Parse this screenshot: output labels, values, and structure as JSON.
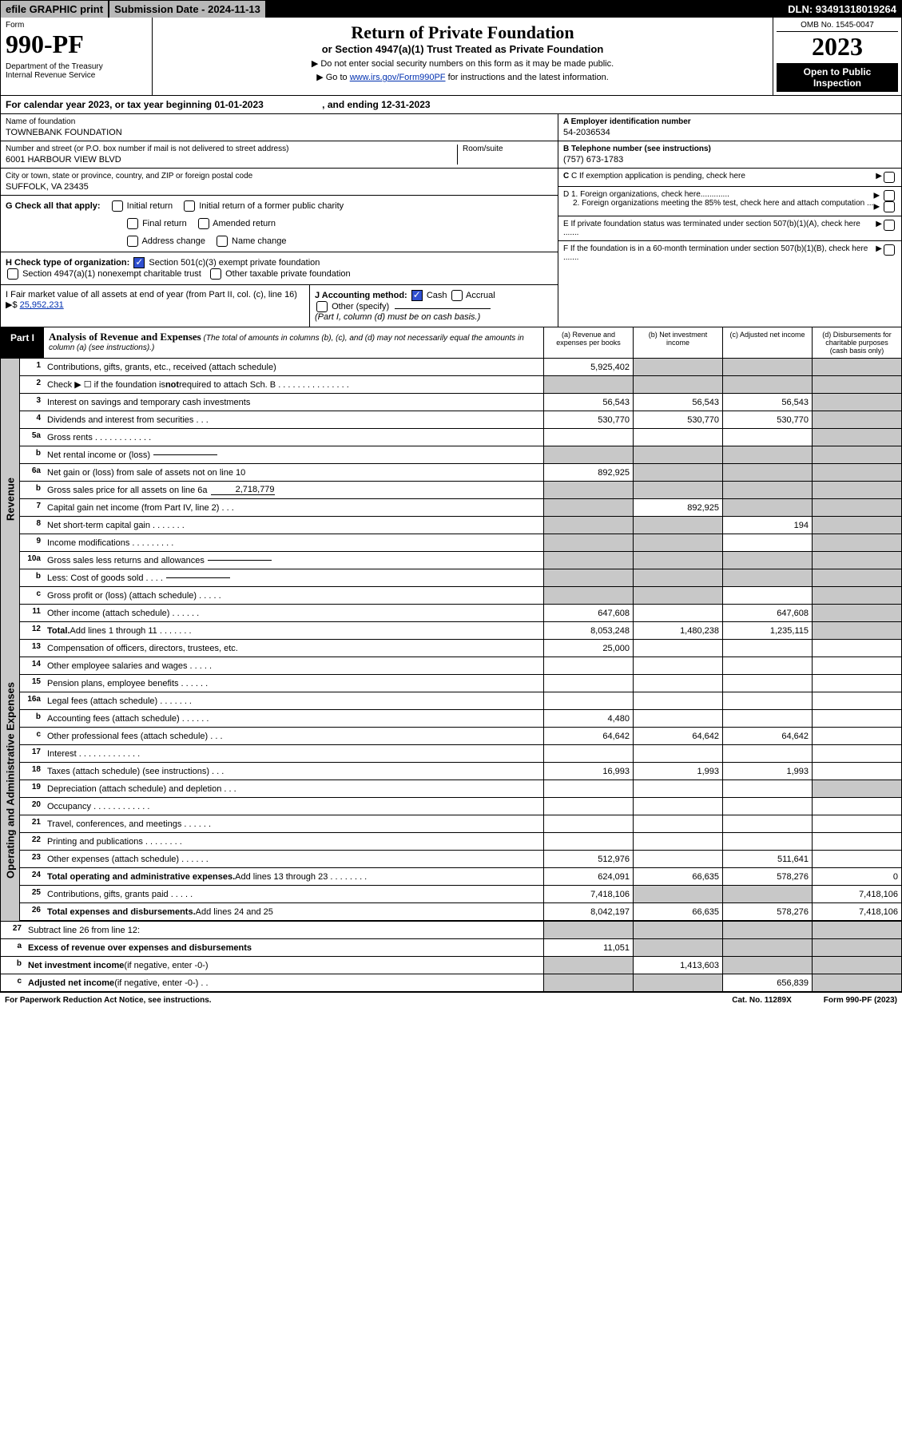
{
  "topbar": {
    "efile": "efile GRAPHIC print",
    "subdate": "Submission Date - 2024-11-13",
    "dln": "DLN: 93491318019264"
  },
  "header": {
    "form_label": "Form",
    "form_number": "990-PF",
    "dept": "Department of the Treasury\nInternal Revenue Service",
    "title": "Return of Private Foundation",
    "subtitle": "or Section 4947(a)(1) Trust Treated as Private Foundation",
    "instr1": "▶ Do not enter social security numbers on this form as it may be made public.",
    "instr2_pre": "▶ Go to ",
    "instr2_link": "www.irs.gov/Form990PF",
    "instr2_post": " for instructions and the latest information.",
    "omb": "OMB No. 1545-0047",
    "year": "2023",
    "open": "Open to Public Inspection"
  },
  "cal": "For calendar year 2023, or tax year beginning 01-01-2023                      , and ending 12-31-2023",
  "info": {
    "name_label": "Name of foundation",
    "name": "TOWNEBANK FOUNDATION",
    "addr_label": "Number and street (or P.O. box number if mail is not delivered to street address)",
    "addr": "6001 HARBOUR VIEW BLVD",
    "room_label": "Room/suite",
    "city_label": "City or town, state or province, country, and ZIP or foreign postal code",
    "city": "SUFFOLK, VA  23435",
    "a_label": "A Employer identification number",
    "a_val": "54-2036534",
    "b_label": "B Telephone number (see instructions)",
    "b_val": "(757) 673-1783",
    "c_label": "C If exemption application is pending, check here",
    "d1": "D 1. Foreign organizations, check here.............",
    "d2": "2. Foreign organizations meeting the 85% test, check here and attach computation ...",
    "e": "E  If private foundation status was terminated under section 507(b)(1)(A), check here .......",
    "f": "F  If the foundation is in a 60-month termination under section 507(b)(1)(B), check here ......."
  },
  "g": {
    "label": "G Check all that apply:",
    "opts": [
      "Initial return",
      "Final return",
      "Address change",
      "Initial return of a former public charity",
      "Amended return",
      "Name change"
    ]
  },
  "h": {
    "label": "H Check type of organization:",
    "opt1": "Section 501(c)(3) exempt private foundation",
    "opt2": "Section 4947(a)(1) nonexempt charitable trust",
    "opt3": "Other taxable private foundation"
  },
  "i": {
    "label": "I Fair market value of all assets at end of year (from Part II, col. (c), line 16) ▶$ ",
    "val": "25,952,231"
  },
  "j": {
    "label": "J Accounting method:",
    "cash": "Cash",
    "accrual": "Accrual",
    "other": "Other (specify)",
    "note": "(Part I, column (d) must be on cash basis.)"
  },
  "part1": {
    "tag": "Part I",
    "title": "Analysis of Revenue and Expenses",
    "note": "(The total of amounts in columns (b), (c), and (d) may not necessarily equal the amounts in column (a) (see instructions).)",
    "col_a": "(a)  Revenue and expenses per books",
    "col_b": "(b)  Net investment income",
    "col_c": "(c)  Adjusted net income",
    "col_d": "(d)  Disbursements for charitable purposes (cash basis only)"
  },
  "sections": {
    "revenue": "Revenue",
    "expenses": "Operating and Administrative Expenses"
  },
  "lines": [
    {
      "n": "1",
      "d": "",
      "a": "5,925,402",
      "b": "",
      "c": "",
      "sb": true,
      "sc": true,
      "sd": true
    },
    {
      "n": "2",
      "d": "",
      "a": "",
      "b": "",
      "c": "",
      "sa": true,
      "sb": true,
      "sc": true,
      "sd": true
    },
    {
      "n": "3",
      "d": "",
      "a": "56,543",
      "b": "56,543",
      "c": "56,543",
      "sd": true
    },
    {
      "n": "4",
      "d": "",
      "a": "530,770",
      "b": "530,770",
      "c": "530,770",
      "sd": true
    },
    {
      "n": "5a",
      "d": "",
      "a": "",
      "b": "",
      "c": "",
      "sd": true
    },
    {
      "n": "b",
      "d": "",
      "a": "",
      "b": "",
      "c": "",
      "sa": true,
      "sb": true,
      "sc": true,
      "sd": true
    },
    {
      "n": "6a",
      "d": "",
      "a": "892,925",
      "b": "",
      "c": "",
      "sb": true,
      "sc": true,
      "sd": true
    },
    {
      "n": "b",
      "d": "",
      "a": "",
      "b": "",
      "c": "",
      "sa": true,
      "sb": true,
      "sc": true,
      "sd": true
    },
    {
      "n": "7",
      "d": "",
      "a": "",
      "b": "892,925",
      "c": "",
      "sa": true,
      "sc": true,
      "sd": true
    },
    {
      "n": "8",
      "d": "",
      "a": "",
      "b": "",
      "c": "194",
      "sa": true,
      "sb": true,
      "sd": true
    },
    {
      "n": "9",
      "d": "",
      "a": "",
      "b": "",
      "c": "",
      "sa": true,
      "sb": true,
      "sd": true
    },
    {
      "n": "10a",
      "d": "",
      "a": "",
      "b": "",
      "c": "",
      "sa": true,
      "sb": true,
      "sc": true,
      "sd": true
    },
    {
      "n": "b",
      "d": "",
      "a": "",
      "b": "",
      "c": "",
      "sa": true,
      "sb": true,
      "sc": true,
      "sd": true
    },
    {
      "n": "c",
      "d": "",
      "a": "",
      "b": "",
      "c": "",
      "sa": true,
      "sb": true,
      "sd": true
    },
    {
      "n": "11",
      "d": "",
      "a": "647,608",
      "b": "",
      "c": "647,608",
      "sd": true
    },
    {
      "n": "12",
      "d": "",
      "a": "8,053,248",
      "b": "1,480,238",
      "c": "1,235,115",
      "sd": true
    }
  ],
  "explines": [
    {
      "n": "13",
      "d": "",
      "a": "25,000",
      "b": "",
      "c": ""
    },
    {
      "n": "14",
      "d": "",
      "a": "",
      "b": "",
      "c": ""
    },
    {
      "n": "15",
      "d": "",
      "a": "",
      "b": "",
      "c": ""
    },
    {
      "n": "16a",
      "d": "",
      "a": "",
      "b": "",
      "c": ""
    },
    {
      "n": "b",
      "d": "",
      "a": "4,480",
      "b": "",
      "c": ""
    },
    {
      "n": "c",
      "d": "",
      "a": "64,642",
      "b": "64,642",
      "c": "64,642"
    },
    {
      "n": "17",
      "d": "",
      "a": "",
      "b": "",
      "c": ""
    },
    {
      "n": "18",
      "d": "",
      "a": "16,993",
      "b": "1,993",
      "c": "1,993"
    },
    {
      "n": "19",
      "d": "",
      "a": "",
      "b": "",
      "c": "",
      "sd": true
    },
    {
      "n": "20",
      "d": "",
      "a": "",
      "b": "",
      "c": ""
    },
    {
      "n": "21",
      "d": "",
      "a": "",
      "b": "",
      "c": ""
    },
    {
      "n": "22",
      "d": "",
      "a": "",
      "b": "",
      "c": ""
    },
    {
      "n": "23",
      "d": "",
      "a": "512,976",
      "b": "",
      "c": "511,641"
    },
    {
      "n": "24",
      "d": "0",
      "a": "624,091",
      "b": "66,635",
      "c": "578,276"
    },
    {
      "n": "25",
      "d": "7,418,106",
      "a": "7,418,106",
      "b": "",
      "c": "",
      "sb": true,
      "sc": true
    },
    {
      "n": "26",
      "d": "7,418,106",
      "a": "8,042,197",
      "b": "66,635",
      "c": "578,276"
    }
  ],
  "botlines": [
    {
      "n": "27",
      "d": "",
      "a": "",
      "b": "",
      "c": "",
      "sa": true,
      "sb": true,
      "sc": true,
      "sd": true
    },
    {
      "n": "a",
      "d": "",
      "a": "11,051",
      "b": "",
      "c": "",
      "sb": true,
      "sc": true,
      "sd": true
    },
    {
      "n": "b",
      "d": "",
      "a": "",
      "b": "1,413,603",
      "c": "",
      "sa": true,
      "sc": true,
      "sd": true
    },
    {
      "n": "c",
      "d": "",
      "a": "",
      "b": "",
      "c": "656,839",
      "sa": true,
      "sb": true,
      "sd": true
    }
  ],
  "footer": {
    "left": "For Paperwork Reduction Act Notice, see instructions.",
    "mid": "Cat. No. 11289X",
    "right": "Form 990-PF (2023)"
  }
}
